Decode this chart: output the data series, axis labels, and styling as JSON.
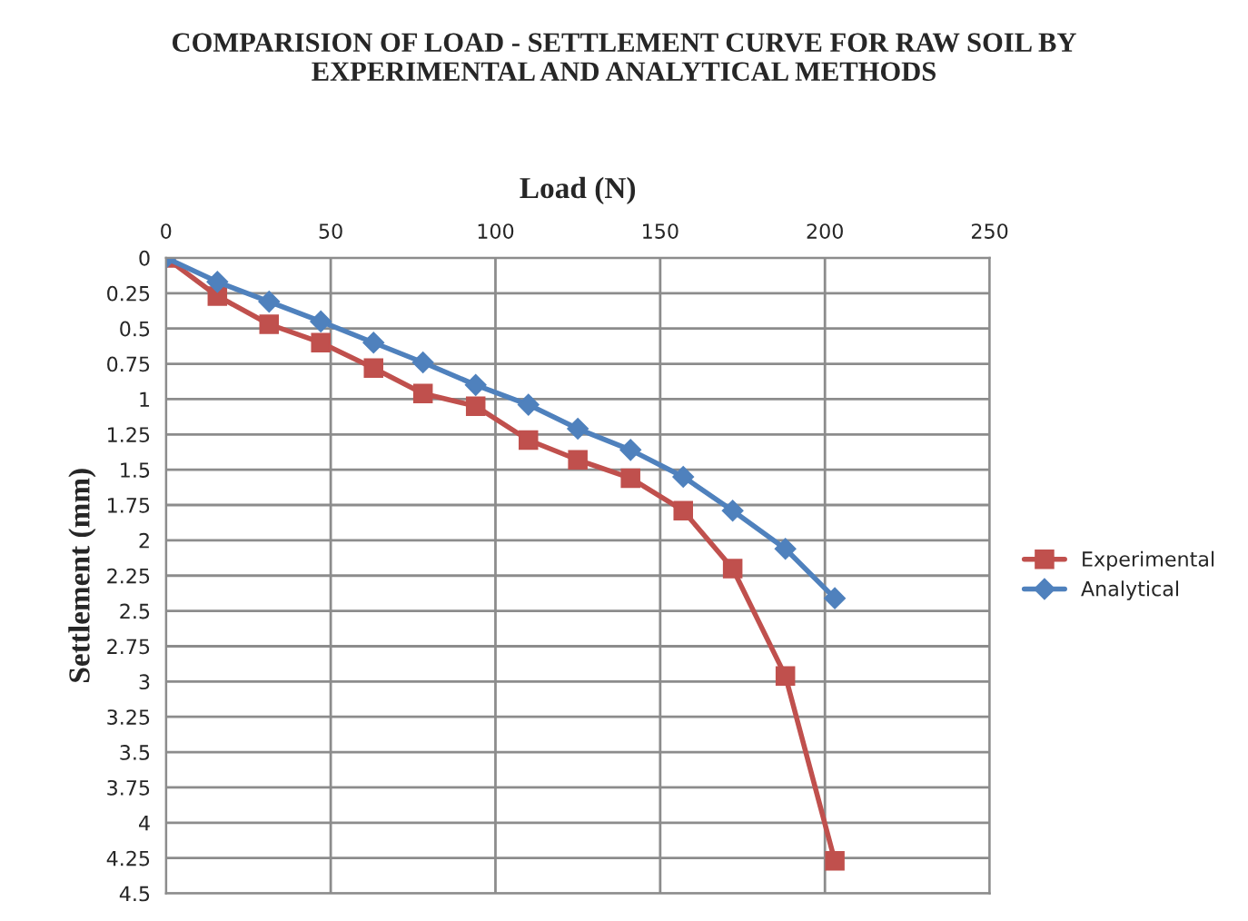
{
  "chart_data": {
    "type": "line",
    "title": "COMPARISION OF LOAD - SETTLEMENT CURVE FOR RAW SOIL BY\nEXPERIMENTAL AND ANALYTICAL METHODS",
    "xlabel": "Load (N)",
    "ylabel": "Settlement (mm)",
    "series": [
      {
        "name": "Experimental",
        "color": "#c0504d",
        "marker": "square",
        "x": [
          0,
          15.6,
          31.3,
          47,
          63,
          78,
          94,
          110,
          125,
          141,
          157,
          172,
          188,
          203
        ],
        "values": [
          0,
          0.27,
          0.47,
          0.6,
          0.78,
          0.96,
          1.05,
          1.29,
          1.43,
          1.56,
          1.79,
          2.2,
          2.96,
          4.27
        ]
      },
      {
        "name": "Analytical",
        "color": "#4f81bd",
        "marker": "diamond",
        "x": [
          0,
          15.6,
          31.3,
          47,
          63,
          78,
          94,
          110,
          125,
          141,
          157,
          172,
          188,
          203
        ],
        "values": [
          0,
          0.17,
          0.31,
          0.45,
          0.6,
          0.74,
          0.9,
          1.04,
          1.21,
          1.36,
          1.55,
          1.79,
          2.06,
          2.41
        ]
      }
    ],
    "xlim": [
      0,
      250
    ],
    "xticks": [
      0,
      50,
      100,
      150,
      200,
      250
    ],
    "ylim": [
      4.5,
      0
    ],
    "yticks": [
      0,
      0.25,
      0.5,
      0.75,
      1,
      1.25,
      1.5,
      1.75,
      2,
      2.25,
      2.5,
      2.75,
      3,
      3.25,
      3.5,
      3.75,
      4,
      4.25,
      4.5
    ],
    "grid": true,
    "legend": "right",
    "line_style": "solid"
  }
}
